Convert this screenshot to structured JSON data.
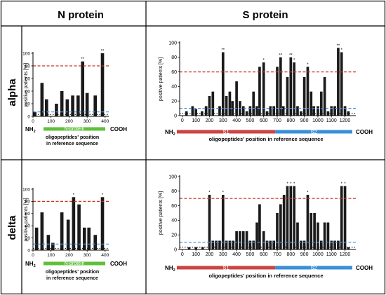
{
  "header": {
    "left": "N protein",
    "right": "S protein"
  },
  "rows": [
    "alpha",
    "delta"
  ],
  "x_caption": {
    "n_line1": "oligopeptides' position",
    "n_line2": "in reference sequence",
    "s": "oligopeptides' position in reference sequence"
  },
  "domain_labels": {
    "nh2_base": "NH",
    "nh2_sub": "2",
    "cooh": "COOH",
    "n_bar": "N-protein",
    "s1": "S1",
    "s2": "S2"
  },
  "colors": {
    "bar": "#1a1a1a",
    "threshold_red": "#cc3322",
    "threshold_blue": "#4a90e2",
    "n_domain": "#5fbf3a",
    "s1_domain": "#cc4444",
    "s2_domain": "#3a8fd8"
  },
  "chart_data": [
    {
      "id": "alpha-n",
      "type": "bar",
      "ylabel": "positive patients [%]",
      "ylim": [
        0,
        100
      ],
      "yticks": [
        0,
        20,
        40,
        60,
        80,
        100
      ],
      "xlim": [
        0,
        420
      ],
      "xticks": [
        0,
        100,
        200,
        300,
        400
      ],
      "bar_width": 18,
      "x": [
        10,
        50,
        75,
        130,
        160,
        190,
        220,
        250,
        275,
        300,
        345,
        385
      ],
      "values": [
        7,
        53,
        27,
        20,
        40,
        27,
        33,
        33,
        87,
        37,
        33,
        100
      ],
      "annotations": [
        {
          "x": 275,
          "text": "**"
        },
        {
          "x": 385,
          "text": "**"
        }
      ],
      "threshold_red": 80,
      "threshold_blue": 7,
      "baseline_dotted": 3
    },
    {
      "id": "alpha-s",
      "type": "bar",
      "ylabel": "positive patients [%]",
      "ylim": [
        0,
        100
      ],
      "yticks": [
        0,
        20,
        40,
        60,
        80,
        100
      ],
      "xlim": [
        -20,
        1280
      ],
      "xticks": [
        0,
        100,
        200,
        300,
        400,
        500,
        600,
        700,
        800,
        900,
        1000,
        1100,
        1200
      ],
      "bar_width": 19,
      "x": [
        30,
        75,
        100,
        145,
        175,
        200,
        225,
        275,
        300,
        325,
        350,
        370,
        400,
        425,
        450,
        475,
        500,
        525,
        550,
        570,
        600,
        625,
        650,
        675,
        700,
        725,
        745,
        775,
        800,
        825,
        850,
        875,
        900,
        925,
        950,
        970,
        1000,
        1025,
        1050,
        1075,
        1100,
        1125,
        1150,
        1175,
        1200,
        1225
      ],
      "values": [
        6,
        13,
        9,
        6,
        13,
        27,
        33,
        13,
        87,
        27,
        33,
        20,
        47,
        20,
        13,
        6,
        13,
        33,
        13,
        67,
        73,
        6,
        13,
        13,
        67,
        80,
        13,
        53,
        80,
        73,
        13,
        6,
        53,
        67,
        33,
        13,
        13,
        33,
        53,
        6,
        13,
        13,
        93,
        87,
        13,
        6
      ],
      "annotations": [
        {
          "x": 300,
          "text": "**"
        },
        {
          "x": 600,
          "text": "*"
        },
        {
          "x": 725,
          "text": "**"
        },
        {
          "x": 800,
          "text": "**"
        },
        {
          "x": 825,
          "text": "*"
        },
        {
          "x": 925,
          "text": "*"
        },
        {
          "x": 1150,
          "text": "**"
        },
        {
          "x": 1175,
          "text": "*"
        }
      ],
      "threshold_red": 60,
      "threshold_blue": 10,
      "baseline_dotted": 3
    },
    {
      "id": "delta-n",
      "type": "bar",
      "ylabel": "positive patients [%]",
      "ylim": [
        0,
        100
      ],
      "yticks": [
        0,
        20,
        40,
        60,
        80,
        100
      ],
      "xlim": [
        0,
        420
      ],
      "xticks": [
        0,
        100,
        200,
        300,
        400
      ],
      "bar_width": 18,
      "x": [
        20,
        50,
        85,
        110,
        160,
        195,
        225,
        255,
        285,
        310,
        345,
        385
      ],
      "values": [
        37,
        62,
        25,
        12,
        62,
        50,
        87,
        75,
        37,
        37,
        25,
        87
      ],
      "annotations": [
        {
          "x": 225,
          "text": "*"
        },
        {
          "x": 385,
          "text": "*"
        }
      ],
      "threshold_red": 80,
      "threshold_blue": 10,
      "baseline_dotted": 3
    },
    {
      "id": "delta-s",
      "type": "bar",
      "ylabel": "positive patients [%]",
      "ylim": [
        0,
        100
      ],
      "yticks": [
        0,
        20,
        40,
        60,
        80,
        100
      ],
      "xlim": [
        -20,
        1280
      ],
      "xticks": [
        0,
        100,
        200,
        300,
        400,
        500,
        600,
        700,
        800,
        900,
        1000,
        1100,
        1200
      ],
      "bar_width": 19,
      "x": [
        50,
        100,
        150,
        200,
        225,
        250,
        275,
        300,
        325,
        350,
        375,
        400,
        425,
        450,
        475,
        500,
        525,
        550,
        570,
        600,
        625,
        650,
        675,
        700,
        725,
        750,
        775,
        800,
        825,
        850,
        875,
        900,
        925,
        950,
        975,
        1000,
        1025,
        1050,
        1075,
        1100,
        1125,
        1150,
        1175,
        1200,
        1225
      ],
      "values": [
        3,
        3,
        3,
        75,
        12,
        12,
        12,
        75,
        12,
        12,
        12,
        25,
        25,
        25,
        25,
        12,
        12,
        37,
        62,
        25,
        12,
        12,
        12,
        50,
        62,
        75,
        87,
        87,
        87,
        37,
        12,
        12,
        75,
        50,
        50,
        37,
        12,
        37,
        37,
        12,
        12,
        12,
        87,
        87,
        3
      ],
      "annotations": [
        {
          "x": 200,
          "text": "*"
        },
        {
          "x": 300,
          "text": "*"
        },
        {
          "x": 775,
          "text": "*"
        },
        {
          "x": 800,
          "text": "*"
        },
        {
          "x": 825,
          "text": "*"
        },
        {
          "x": 925,
          "text": "*"
        },
        {
          "x": 1175,
          "text": "*"
        },
        {
          "x": 1200,
          "text": "*"
        }
      ],
      "threshold_red": 70,
      "threshold_blue": 10,
      "baseline_dotted": 3
    }
  ]
}
